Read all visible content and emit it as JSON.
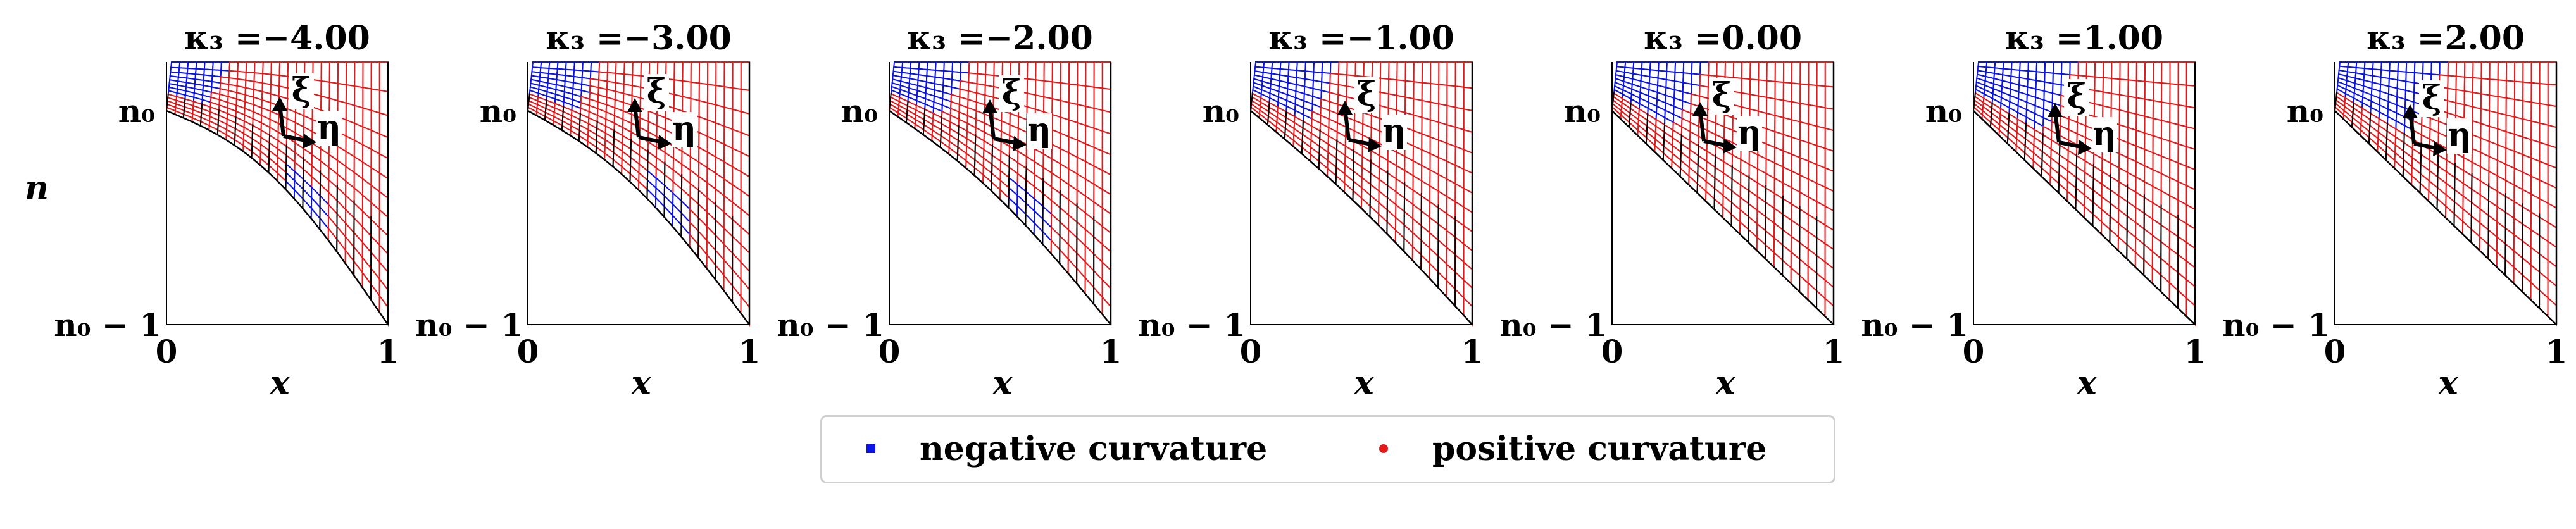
{
  "chart_data": {
    "type": "scatter",
    "description_type": "grid-mesh small multiples",
    "y_axis_label": "n",
    "x_axis_label": "x",
    "x_ticks": [
      "0",
      "1"
    ],
    "y_ticks": [
      "n₀",
      "n₀ − 1"
    ],
    "direction_labels": [
      "ξ",
      "η"
    ],
    "panels": [
      {
        "title": "κ₃ =−4.00",
        "kappa3": -4.0
      },
      {
        "title": "κ₃ =−3.00",
        "kappa3": -3.0
      },
      {
        "title": "κ₃ =−2.00",
        "kappa3": -2.0
      },
      {
        "title": "κ₃ =−1.00",
        "kappa3": -1.0
      },
      {
        "title": "κ₃ =0.00",
        "kappa3": 0.0
      },
      {
        "title": "κ₃ =1.00",
        "kappa3": 1.0
      },
      {
        "title": "κ₃ =2.00",
        "kappa3": 2.0
      }
    ],
    "legend": {
      "position": "bottom-center",
      "entries": [
        {
          "label": "negative curvature",
          "color": "#0a14e6",
          "marker": "square"
        },
        {
          "label": "positive curvature",
          "color": "#e31a1c",
          "marker": "dot"
        }
      ]
    },
    "grid": false
  }
}
